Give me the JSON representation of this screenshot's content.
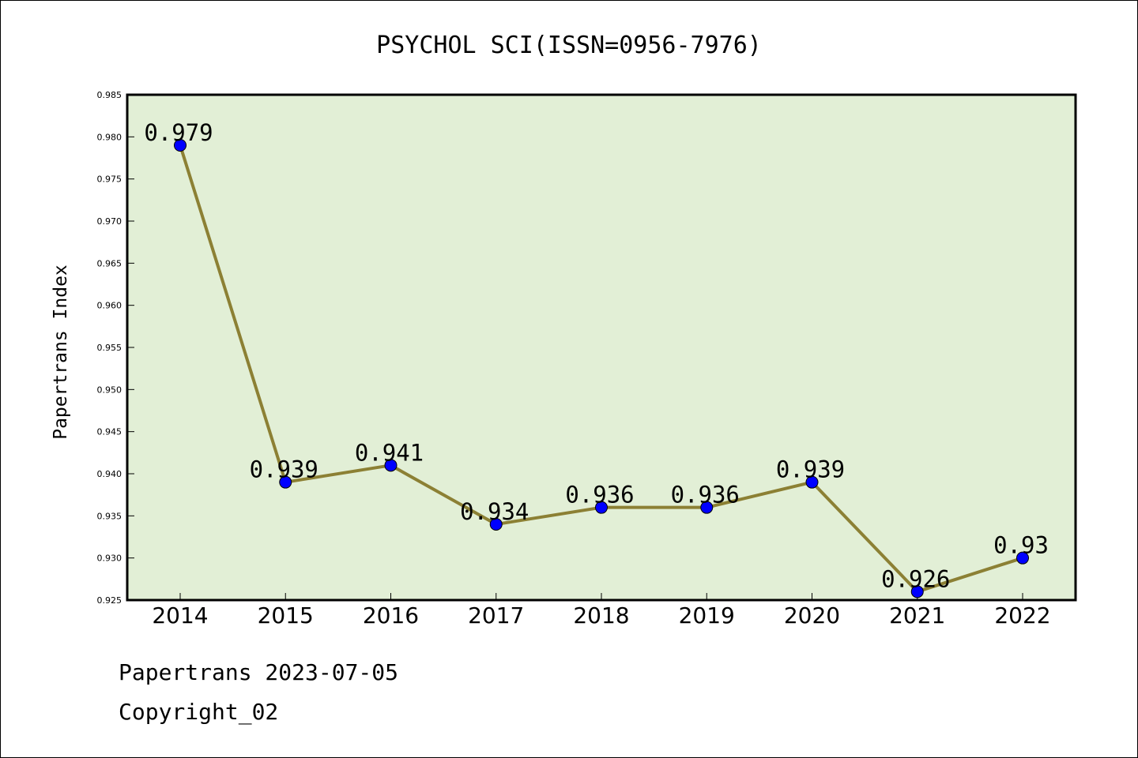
{
  "chart_data": {
    "type": "line",
    "title": "PSYCHOL SCI(ISSN=0956-7976)",
    "ylabel": "Papertrans Index",
    "xlabel": "",
    "categories": [
      "2014",
      "2015",
      "2016",
      "2017",
      "2018",
      "2019",
      "2020",
      "2021",
      "2022"
    ],
    "values": [
      0.979,
      0.939,
      0.941,
      0.934,
      0.936,
      0.936,
      0.939,
      0.926,
      0.93
    ],
    "value_labels": [
      "0.979",
      "0.939",
      "0.941",
      "0.934",
      "0.936",
      "0.936",
      "0.939",
      "0.926",
      "0.93"
    ],
    "ylim": [
      0.925,
      0.985
    ],
    "yticks": [
      0.925,
      0.93,
      0.935,
      0.94,
      0.945,
      0.95,
      0.955,
      0.96,
      0.965,
      0.97,
      0.975,
      0.98,
      0.985
    ],
    "ytick_labels": [
      "0.925",
      "0.930",
      "0.935",
      "0.940",
      "0.945",
      "0.950",
      "0.955",
      "0.960",
      "0.965",
      "0.970",
      "0.975",
      "0.980",
      "0.985"
    ],
    "grid": false,
    "colors": {
      "plot_background": "#e2efd6",
      "line": "#8c8034",
      "marker": "#0000ff"
    }
  },
  "footer": {
    "line1": "Papertrans 2023-07-05",
    "line2": "Copyright_02"
  }
}
